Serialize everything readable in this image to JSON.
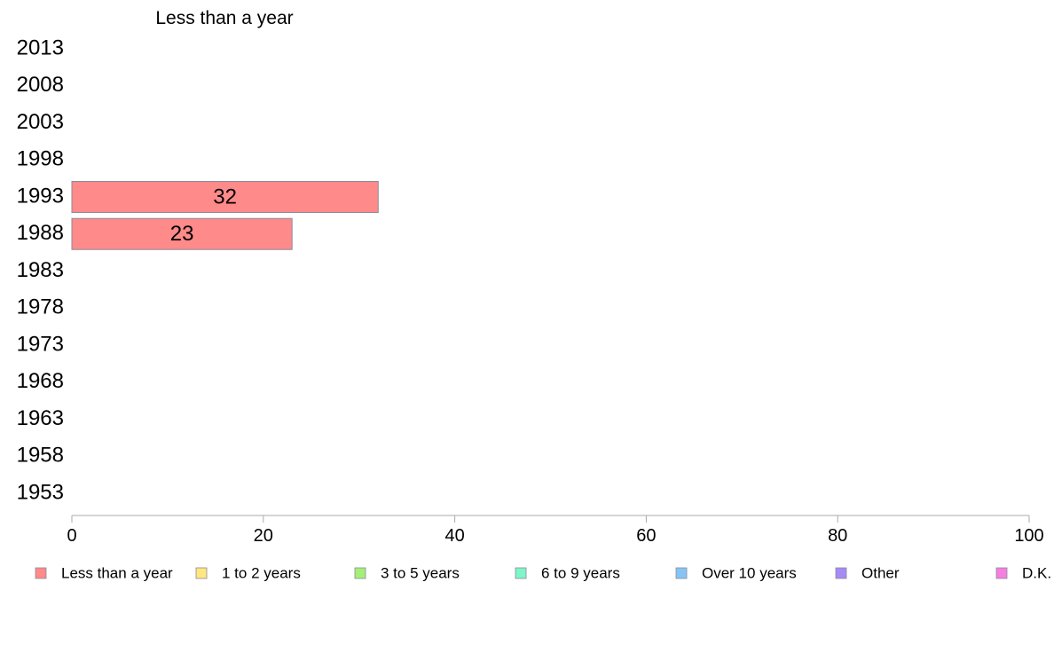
{
  "chart_data": {
    "type": "bar",
    "orientation": "horizontal",
    "title": "Less than a year",
    "categories": [
      "2013",
      "2008",
      "2003",
      "1998",
      "1993",
      "1988",
      "1983",
      "1978",
      "1973",
      "1968",
      "1963",
      "1958",
      "1953"
    ],
    "series": [
      {
        "name": "Less than a year",
        "color": "#ff8a8a",
        "values": [
          null,
          null,
          null,
          null,
          32,
          23,
          null,
          null,
          null,
          null,
          null,
          null,
          null
        ]
      }
    ],
    "xlim": [
      0,
      100
    ],
    "xticks": [
      0,
      20,
      40,
      60,
      80,
      100
    ],
    "grid": false,
    "legend_position": "bottom",
    "legend": [
      {
        "label": "Less than a year",
        "color": "#ff8a8a"
      },
      {
        "label": "1 to 2 years",
        "color": "#ffe680"
      },
      {
        "label": "3 to 5 years",
        "color": "#a3f078"
      },
      {
        "label": "6 to 9 years",
        "color": "#7ff5c8"
      },
      {
        "label": "Over 10 years",
        "color": "#85c5f5"
      },
      {
        "label": "Other",
        "color": "#a78bf5"
      },
      {
        "label": "D.K.",
        "color": "#f67ee0"
      }
    ]
  }
}
